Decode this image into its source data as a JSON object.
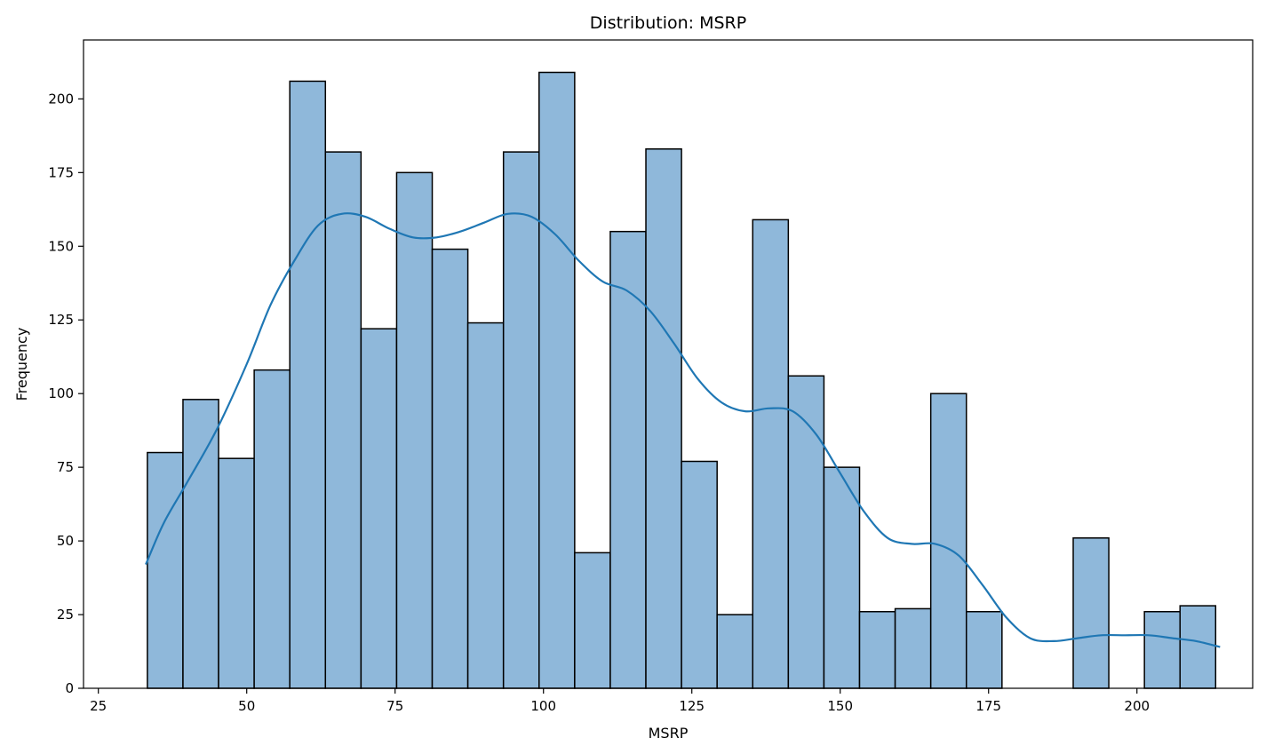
{
  "chart_data": {
    "type": "bar",
    "title": "Distribution: MSRP",
    "xlabel": "MSRP",
    "ylabel": "Frequency",
    "xlim": [
      22.5,
      219.5
    ],
    "ylim": [
      0,
      220
    ],
    "x_ticks": [
      25,
      50,
      75,
      100,
      125,
      150,
      175,
      200
    ],
    "y_ticks": [
      0,
      25,
      50,
      75,
      100,
      125,
      150,
      175,
      200
    ],
    "grid": false,
    "bar_color": "#8fb8da",
    "bar_edge_color": "#000000",
    "kde_color": "#1f77b4",
    "bin_edges": [
      33.26,
      39.26,
      45.26,
      51.26,
      57.26,
      63.26,
      69.26,
      75.26,
      81.26,
      87.26,
      93.26,
      99.26,
      105.26,
      111.26,
      117.26,
      123.26,
      129.26,
      135.26,
      141.26,
      147.26,
      153.26,
      159.26,
      165.26,
      171.26,
      177.26,
      183.26,
      189.26,
      195.26,
      201.26,
      207.26,
      213.26
    ],
    "counts": [
      80,
      98,
      78,
      108,
      206,
      182,
      122,
      175,
      149,
      124,
      182,
      209,
      46,
      155,
      183,
      77,
      25,
      159,
      106,
      75,
      26,
      27,
      100,
      26,
      0,
      0,
      51,
      0,
      26,
      28
    ],
    "kde": {
      "x": [
        33,
        36,
        40,
        45,
        50,
        54,
        58,
        62,
        66,
        70,
        74,
        78,
        82,
        86,
        90,
        94,
        98,
        102,
        106,
        110,
        114,
        118,
        122,
        126,
        130,
        134,
        138,
        142,
        146,
        150,
        154,
        158,
        162,
        166,
        170,
        174,
        178,
        182,
        186,
        190,
        194,
        198,
        202,
        206,
        210,
        214
      ],
      "y": [
        42,
        56,
        70,
        88,
        110,
        130,
        145,
        157,
        161,
        160,
        156,
        153,
        153,
        155,
        158,
        161,
        160,
        154,
        145,
        138,
        135,
        128,
        117,
        105,
        97,
        94,
        95,
        94,
        86,
        73,
        60,
        51,
        49,
        49,
        45,
        35,
        24,
        17,
        16,
        17,
        18,
        18,
        18,
        17,
        16,
        14
      ]
    }
  }
}
